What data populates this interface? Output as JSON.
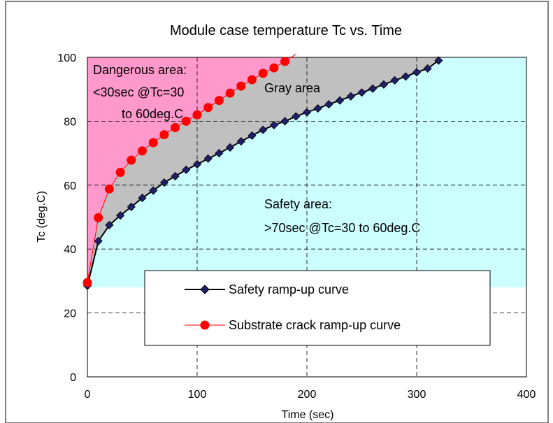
{
  "chart_data": {
    "type": "line",
    "title": "Module case temperature Tc vs. Time",
    "xlabel": "Time (sec)",
    "ylabel": "Tc (deg.C)",
    "xlim": [
      0,
      400
    ],
    "ylim": [
      0,
      100
    ],
    "xticks": [
      0,
      100,
      200,
      300,
      400
    ],
    "yticks": [
      0,
      20,
      40,
      60,
      80,
      100
    ],
    "grid": true,
    "legend_position": "bottom-center",
    "annotations": {
      "dangerous": [
        "Dangerous area:",
        "<30sec @Tc=30",
        "to 60deg.C"
      ],
      "gray": "Gray area",
      "safety": [
        "Safety area:",
        ">70sec @Tc=30 to 60deg.C"
      ]
    },
    "regions": {
      "dangerous_color": "#ff99cc",
      "gray_color": "#c0c0c0",
      "safety_color": "#ccffff",
      "safety_floor": 28
    },
    "series": [
      {
        "name": "Safety ramp-up curve",
        "color": "#000000",
        "marker_color": "#1f1f6e",
        "marker": "diamond",
        "x": [
          0,
          10,
          20,
          30,
          40,
          50,
          60,
          70,
          80,
          90,
          100,
          110,
          120,
          130,
          140,
          150,
          160,
          170,
          180,
          190,
          200,
          210,
          220,
          230,
          240,
          250,
          260,
          270,
          280,
          290,
          300,
          310,
          320
        ],
        "y": [
          28.5,
          42.5,
          47.5,
          50.5,
          53.2,
          56.0,
          58.3,
          60.8,
          62.8,
          64.8,
          66.5,
          68.3,
          70.0,
          71.8,
          73.7,
          75.5,
          77.3,
          78.8,
          80.0,
          81.5,
          82.8,
          84.0,
          85.3,
          86.5,
          87.8,
          89.0,
          90.2,
          91.5,
          92.8,
          94.0,
          95.3,
          96.5,
          99.0
        ]
      },
      {
        "name": "Substrate crack ramp-up curve",
        "color": "#ff0000",
        "marker_color": "#ff0000",
        "marker": "circle",
        "x": [
          0,
          10,
          20,
          30,
          40,
          50,
          60,
          70,
          80,
          90,
          100,
          110,
          120,
          130,
          140,
          150,
          160,
          170,
          180
        ],
        "y": [
          29.5,
          49.8,
          58.8,
          64.0,
          67.8,
          70.7,
          73.3,
          75.8,
          78.0,
          80.0,
          82.0,
          84.3,
          86.5,
          88.8,
          91.0,
          93.0,
          95.0,
          96.7,
          98.7
        ],
        "line_end": [
          190,
          101
        ]
      }
    ]
  }
}
